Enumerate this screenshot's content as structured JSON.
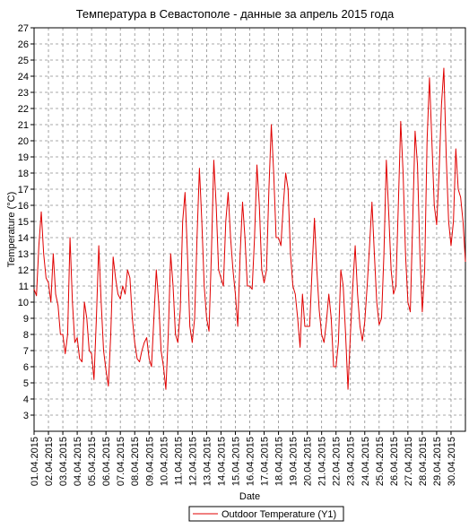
{
  "chart_data": {
    "type": "line",
    "title": "Температура в Севастополе - данные за апрель 2015 года",
    "xlabel": "Date",
    "ylabel": "Temperature (°C)",
    "ylim": [
      2,
      27
    ],
    "yticks": [
      3,
      4,
      5,
      6,
      7,
      8,
      9,
      10,
      11,
      12,
      13,
      14,
      15,
      16,
      17,
      18,
      19,
      20,
      21,
      22,
      23,
      24,
      25,
      26,
      27
    ],
    "xlim_days": [
      1,
      31
    ],
    "grid": true,
    "legend_position": "bottom-center",
    "x_tick_labels": [
      "01.04.2015",
      "02.04.2015",
      "03.04.2015",
      "04.04.2015",
      "05.04.2015",
      "06.04.2015",
      "07.04.2015",
      "08.04.2015",
      "09.04.2015",
      "10.04.2015",
      "11.04.2015",
      "12.04.2015",
      "13.04.2015",
      "14.04.2015",
      "15.04.2015",
      "16.04.2015",
      "17.04.2015",
      "18.04.2015",
      "19.04.2015",
      "20.04.2015",
      "21.04.2015",
      "22.04.2015",
      "23.04.2015",
      "24.04.2015",
      "25.04.2015",
      "26.04.2015",
      "27.04.2015",
      "28.04.2015",
      "29.04.2015",
      "30.04.2015"
    ],
    "series": [
      {
        "name": "Outdoor Temperature (Y1)",
        "color": "#e00000",
        "x_dates": [
          "01.04.2015 00:00",
          "01.04.2015 04:00",
          "01.04.2015 08:00",
          "01.04.2015 12:00",
          "01.04.2015 16:00",
          "01.04.2015 20:00",
          "02.04.2015 00:00",
          "02.04.2015 04:00",
          "02.04.2015 08:00",
          "02.04.2015 12:00",
          "02.04.2015 16:00",
          "02.04.2015 20:00",
          "03.04.2015 00:00",
          "03.04.2015 04:00",
          "03.04.2015 08:00",
          "03.04.2015 12:00",
          "03.04.2015 16:00",
          "03.04.2015 20:00",
          "04.04.2015 00:00",
          "04.04.2015 04:00",
          "04.04.2015 08:00",
          "04.04.2015 12:00",
          "04.04.2015 16:00",
          "04.04.2015 20:00",
          "05.04.2015 00:00",
          "05.04.2015 04:00",
          "05.04.2015 08:00",
          "05.04.2015 12:00",
          "05.04.2015 16:00",
          "05.04.2015 20:00",
          "06.04.2015 00:00",
          "06.04.2015 04:00",
          "06.04.2015 08:00",
          "06.04.2015 12:00",
          "06.04.2015 16:00",
          "06.04.2015 20:00",
          "07.04.2015 00:00",
          "07.04.2015 04:00",
          "07.04.2015 08:00",
          "07.04.2015 12:00",
          "07.04.2015 16:00",
          "07.04.2015 20:00",
          "08.04.2015 00:00",
          "08.04.2015 04:00",
          "08.04.2015 08:00",
          "08.04.2015 12:00",
          "08.04.2015 16:00",
          "08.04.2015 20:00",
          "09.04.2015 00:00",
          "09.04.2015 04:00",
          "09.04.2015 08:00",
          "09.04.2015 12:00",
          "09.04.2015 16:00",
          "09.04.2015 20:00",
          "10.04.2015 00:00",
          "10.04.2015 04:00",
          "10.04.2015 08:00",
          "10.04.2015 12:00",
          "10.04.2015 16:00",
          "10.04.2015 20:00",
          "11.04.2015 00:00",
          "11.04.2015 04:00",
          "11.04.2015 08:00",
          "11.04.2015 12:00",
          "11.04.2015 16:00",
          "11.04.2015 20:00",
          "12.04.2015 00:00",
          "12.04.2015 04:00",
          "12.04.2015 08:00",
          "12.04.2015 12:00",
          "12.04.2015 16:00",
          "12.04.2015 20:00",
          "13.04.2015 00:00",
          "13.04.2015 04:00",
          "13.04.2015 08:00",
          "13.04.2015 12:00",
          "13.04.2015 16:00",
          "13.04.2015 20:00",
          "14.04.2015 00:00",
          "14.04.2015 04:00",
          "14.04.2015 08:00",
          "14.04.2015 12:00",
          "14.04.2015 16:00",
          "14.04.2015 20:00",
          "15.04.2015 00:00",
          "15.04.2015 04:00",
          "15.04.2015 08:00",
          "15.04.2015 12:00",
          "15.04.2015 16:00",
          "15.04.2015 20:00",
          "16.04.2015 00:00",
          "16.04.2015 04:00",
          "16.04.2015 08:00",
          "16.04.2015 12:00",
          "16.04.2015 16:00",
          "16.04.2015 20:00",
          "17.04.2015 00:00",
          "17.04.2015 04:00",
          "17.04.2015 08:00",
          "17.04.2015 12:00",
          "17.04.2015 16:00",
          "17.04.2015 20:00",
          "18.04.2015 00:00",
          "18.04.2015 04:00",
          "18.04.2015 08:00",
          "18.04.2015 12:00",
          "18.04.2015 16:00",
          "18.04.2015 20:00",
          "19.04.2015 00:00",
          "19.04.2015 04:00",
          "19.04.2015 08:00",
          "19.04.2015 12:00",
          "19.04.2015 16:00",
          "19.04.2015 20:00",
          "20.04.2015 00:00",
          "20.04.2015 04:00",
          "20.04.2015 08:00",
          "20.04.2015 12:00",
          "20.04.2015 16:00",
          "20.04.2015 20:00",
          "21.04.2015 00:00",
          "21.04.2015 04:00",
          "21.04.2015 08:00",
          "21.04.2015 12:00",
          "21.04.2015 16:00",
          "21.04.2015 20:00",
          "22.04.2015 00:00",
          "22.04.2015 04:00",
          "22.04.2015 08:00",
          "22.04.2015 12:00",
          "22.04.2015 16:00",
          "22.04.2015 20:00",
          "23.04.2015 00:00",
          "23.04.2015 04:00",
          "23.04.2015 08:00",
          "23.04.2015 12:00",
          "23.04.2015 16:00",
          "23.04.2015 20:00",
          "24.04.2015 00:00",
          "24.04.2015 04:00",
          "24.04.2015 08:00",
          "24.04.2015 12:00",
          "24.04.2015 16:00",
          "24.04.2015 20:00",
          "25.04.2015 00:00",
          "25.04.2015 04:00",
          "25.04.2015 08:00",
          "25.04.2015 12:00",
          "25.04.2015 16:00",
          "25.04.2015 20:00",
          "26.04.2015 00:00",
          "26.04.2015 04:00",
          "26.04.2015 08:00",
          "26.04.2015 12:00",
          "26.04.2015 16:00",
          "26.04.2015 20:00",
          "27.04.2015 00:00",
          "27.04.2015 04:00",
          "27.04.2015 08:00",
          "27.04.2015 12:00",
          "27.04.2015 16:00",
          "27.04.2015 20:00",
          "28.04.2015 00:00",
          "28.04.2015 04:00",
          "28.04.2015 08:00",
          "28.04.2015 12:00",
          "28.04.2015 16:00",
          "28.04.2015 20:00",
          "29.04.2015 00:00",
          "29.04.2015 04:00",
          "29.04.2015 08:00",
          "29.04.2015 12:00",
          "29.04.2015 16:00",
          "29.04.2015 20:00",
          "30.04.2015 00:00",
          "30.04.2015 04:00",
          "30.04.2015 08:00",
          "30.04.2015 12:00",
          "30.04.2015 16:00",
          "30.04.2015 20:00",
          "01.05.2015 00:00"
        ],
        "values": [
          10.8,
          10.4,
          13.5,
          15.6,
          13.0,
          11.5,
          11.2,
          10.0,
          13.0,
          10.5,
          9.8,
          8.0,
          8.0,
          6.8,
          8.0,
          14.0,
          10.0,
          7.5,
          7.8,
          6.5,
          6.3,
          10.0,
          9.0,
          7.0,
          6.8,
          5.2,
          9.0,
          13.5,
          10.0,
          7.0,
          5.8,
          4.8,
          8.0,
          12.8,
          11.5,
          10.5,
          10.2,
          11.0,
          10.5,
          12.0,
          11.5,
          9.0,
          7.5,
          6.5,
          6.3,
          7.0,
          7.5,
          7.8,
          6.5,
          6.0,
          9.0,
          12.0,
          10.0,
          7.0,
          6.0,
          4.6,
          8.0,
          13.0,
          11.0,
          8.0,
          7.5,
          9.5,
          15.0,
          16.8,
          13.0,
          8.5,
          7.5,
          9.0,
          14.0,
          18.3,
          15.0,
          11.0,
          9.0,
          8.2,
          13.0,
          18.8,
          16.0,
          12.0,
          11.5,
          11.0,
          15.0,
          16.8,
          14.0,
          12.0,
          10.5,
          8.5,
          13.0,
          16.2,
          14.0,
          11.0,
          11.0,
          10.8,
          14.0,
          18.5,
          16.0,
          12.0,
          11.2,
          12.0,
          17.0,
          21.0,
          18.0,
          14.0,
          14.0,
          13.5,
          16.0,
          18.0,
          17.0,
          13.0,
          11.0,
          10.5,
          9.0,
          7.2,
          10.5,
          8.5,
          8.5,
          8.5,
          12.0,
          15.2,
          12.0,
          9.5,
          8.0,
          7.5,
          8.8,
          10.5,
          9.0,
          6.0,
          6.0,
          7.5,
          12.0,
          11.0,
          8.0,
          4.6,
          8.0,
          11.0,
          13.5,
          10.5,
          8.5,
          7.6,
          8.8,
          11.0,
          13.5,
          16.2,
          13.0,
          10.0,
          8.6,
          9.0,
          13.0,
          18.8,
          15.5,
          12.0,
          10.5,
          11.0,
          16.0,
          21.2,
          18.0,
          13.0,
          10.0,
          9.4,
          15.0,
          20.6,
          18.5,
          13.0,
          9.4,
          12.0,
          20.0,
          23.9,
          20.0,
          16.0,
          14.8,
          18.0,
          22.2,
          24.5,
          19.0,
          15.0,
          13.5,
          15.0,
          19.5,
          17.0,
          16.5,
          15.0,
          12.5
        ]
      }
    ]
  }
}
